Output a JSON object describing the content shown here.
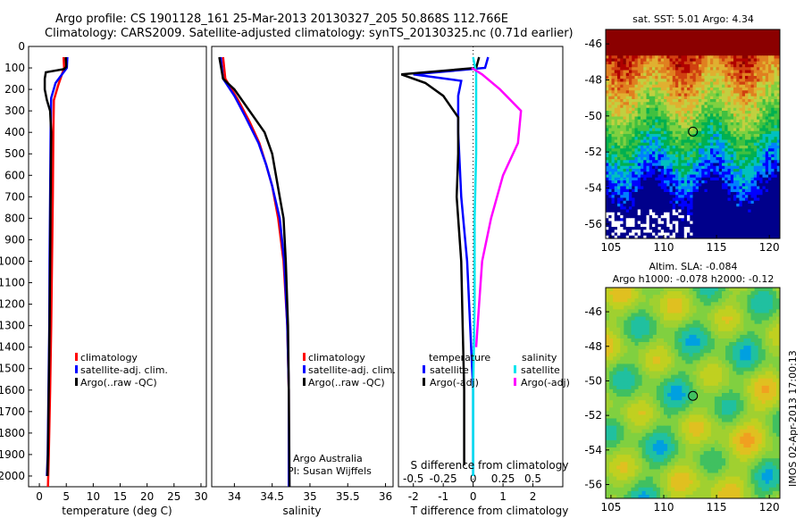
{
  "header": {
    "line1": "Argo profile: CS 1901128_161 25-Mar-2013 20130327_205 50.868S 112.766E",
    "line2": "Climatology: CARS2009. Satellite-adjusted climatology: synTS_20130325.nc (0.71d earlier)"
  },
  "colors": {
    "clim": "#ff0000",
    "sat": "#0000ff",
    "argo": "#000000",
    "sat_s": "#00e5ee",
    "argo_s": "#ff00ff"
  },
  "chart_data": [
    {
      "type": "line",
      "id": "temperature",
      "xlabel": "temperature (deg C)",
      "xlim": [
        -2,
        31
      ],
      "ylim": [
        2050,
        0
      ],
      "xticks": [
        0,
        5,
        10,
        15,
        20,
        25,
        30
      ],
      "yticks": [
        0,
        100,
        200,
        300,
        400,
        500,
        600,
        700,
        800,
        900,
        1000,
        1100,
        1200,
        1300,
        1400,
        1500,
        1600,
        1700,
        1800,
        1900,
        2000
      ],
      "legend": [
        "climatology",
        "satellite-adj. clim.",
        "Argo(..raw -QC)"
      ],
      "series": [
        {
          "name": "climatology",
          "color": "clim",
          "points": [
            [
              4.5,
              50
            ],
            [
              4.6,
              100
            ],
            [
              3.5,
              180
            ],
            [
              2.7,
              250
            ],
            [
              2.6,
              400
            ],
            [
              2.5,
              700
            ],
            [
              2.35,
              1000
            ],
            [
              2.2,
              1300
            ],
            [
              2.0,
              1600
            ],
            [
              1.75,
              1900
            ],
            [
              1.6,
              2050
            ]
          ]
        },
        {
          "name": "satellite-adj. clim.",
          "color": "sat",
          "points": [
            [
              5.2,
              50
            ],
            [
              5.1,
              100
            ],
            [
              3.0,
              170
            ],
            [
              2.2,
              240
            ],
            [
              2.1,
              400
            ],
            [
              2.0,
              700
            ],
            [
              1.9,
              1000
            ],
            [
              1.85,
              1300
            ],
            [
              1.7,
              1600
            ],
            [
              1.55,
              1900
            ],
            [
              1.4,
              2000
            ]
          ]
        },
        {
          "name": "Argo(..raw -QC)",
          "color": "argo",
          "points": [
            [
              4.9,
              50
            ],
            [
              5.0,
              95
            ],
            [
              4.6,
              105
            ],
            [
              1.2,
              120
            ],
            [
              1.0,
              150
            ],
            [
              1.0,
              200
            ],
            [
              1.4,
              250
            ],
            [
              2.0,
              300
            ],
            [
              2.2,
              400
            ],
            [
              2.1,
              700
            ],
            [
              2.0,
              1000
            ],
            [
              1.9,
              1300
            ],
            [
              1.75,
              1600
            ],
            [
              1.6,
              1900
            ],
            [
              1.5,
              2000
            ]
          ]
        }
      ]
    },
    {
      "type": "line",
      "id": "salinity",
      "xlabel": "salinity",
      "xlim": [
        33.7,
        36.1
      ],
      "ylim": [
        2050,
        0
      ],
      "xticks": [
        34,
        34.5,
        35,
        35.5,
        36
      ],
      "legend": [
        "climatology",
        "satellite-adj. clim.",
        "Argo(..raw -QC)"
      ],
      "credit": [
        "Argo Australia",
        "PI: Susan Wijffels"
      ],
      "series": [
        {
          "name": "climatology",
          "color": "clim",
          "points": [
            [
              33.85,
              50
            ],
            [
              33.88,
              150
            ],
            [
              34.05,
              250
            ],
            [
              34.2,
              350
            ],
            [
              34.33,
              450
            ],
            [
              34.42,
              550
            ],
            [
              34.5,
              650
            ],
            [
              34.58,
              800
            ],
            [
              34.65,
              1000
            ],
            [
              34.7,
              1300
            ],
            [
              34.72,
              1600
            ],
            [
              34.72,
              2050
            ]
          ]
        },
        {
          "name": "satellite-adj. clim.",
          "color": "sat",
          "points": [
            [
              33.82,
              50
            ],
            [
              33.85,
              150
            ],
            [
              34.0,
              230
            ],
            [
              34.15,
              330
            ],
            [
              34.32,
              450
            ],
            [
              34.42,
              550
            ],
            [
              34.5,
              650
            ],
            [
              34.6,
              800
            ],
            [
              34.66,
              1000
            ],
            [
              34.7,
              1300
            ],
            [
              34.72,
              1600
            ],
            [
              34.72,
              2050
            ]
          ]
        },
        {
          "name": "Argo(..raw -QC)",
          "color": "argo",
          "points": [
            [
              33.8,
              50
            ],
            [
              33.85,
              150
            ],
            [
              34.0,
              200
            ],
            [
              34.2,
              300
            ],
            [
              34.4,
              400
            ],
            [
              34.5,
              500
            ],
            [
              34.55,
              600
            ],
            [
              34.6,
              700
            ],
            [
              34.65,
              800
            ],
            [
              34.68,
              1000
            ],
            [
              34.71,
              1300
            ],
            [
              34.72,
              1600
            ],
            [
              34.73,
              2050
            ]
          ]
        }
      ]
    },
    {
      "type": "line",
      "id": "difference",
      "xlabel": "T difference from climatology",
      "toplabel": "S difference from climatology",
      "xlim": [
        -2.5,
        3.0
      ],
      "ylim": [
        2050,
        0
      ],
      "xticks": [
        -2,
        -1,
        0,
        1,
        2
      ],
      "xticks_top": [
        "-0.5",
        "-0.25",
        "0",
        "0.25",
        "0.5"
      ],
      "legend_headers": [
        "temperature",
        "salinity"
      ],
      "legend_left": [
        "satellite",
        "Argo(-adj)"
      ],
      "legend_right": [
        "satellite",
        "Argo(-adj)"
      ],
      "series": [
        {
          "name": "satellite",
          "color": "sat",
          "points": [
            [
              0.5,
              50
            ],
            [
              0.4,
              100
            ],
            [
              -2.0,
              130
            ],
            [
              -0.4,
              160
            ],
            [
              -0.5,
              230
            ],
            [
              -0.5,
              400
            ],
            [
              -0.4,
              700
            ],
            [
              -0.2,
              1000
            ],
            [
              -0.1,
              1300
            ],
            [
              0.0,
              1600
            ],
            [
              0.0,
              2000
            ]
          ]
        },
        {
          "name": "Argo(-adj)",
          "color": "argo",
          "points": [
            [
              0.2,
              50
            ],
            [
              0.1,
              100
            ],
            [
              -2.4,
              130
            ],
            [
              -1.6,
              170
            ],
            [
              -1.0,
              230
            ],
            [
              -0.5,
              330
            ],
            [
              -0.5,
              500
            ],
            [
              -0.55,
              700
            ],
            [
              -0.4,
              1000
            ],
            [
              -0.35,
              1300
            ],
            [
              -0.3,
              1600
            ],
            [
              -0.3,
              1950
            ]
          ]
        },
        {
          "name": "satellite",
          "color": "sat_s",
          "points": [
            [
              0.0,
              50
            ],
            [
              0.1,
              120
            ],
            [
              0.1,
              300
            ],
            [
              0.1,
              500
            ],
            [
              0.05,
              800
            ],
            [
              0.05,
              1200
            ],
            [
              0.0,
              1600
            ],
            [
              0.0,
              2000
            ]
          ]
        },
        {
          "name": "Argo(-adj)",
          "color": "argo_s",
          "points": [
            [
              -0.05,
              100
            ],
            [
              0.3,
              130
            ],
            [
              0.9,
              200
            ],
            [
              1.6,
              300
            ],
            [
              1.5,
              450
            ],
            [
              1.0,
              600
            ],
            [
              0.6,
              800
            ],
            [
              0.3,
              1000
            ],
            [
              0.2,
              1200
            ],
            [
              0.1,
              1400
            ]
          ]
        }
      ]
    },
    {
      "type": "heatmap",
      "id": "sst",
      "title": "sat. SST: 5.01 Argo: 4.34",
      "xticks": [
        105,
        110,
        115,
        120
      ],
      "yticks": [
        -46,
        -48,
        -50,
        -52,
        -54,
        -56
      ],
      "xlim": [
        104.5,
        121
      ],
      "ylim": [
        -56.8,
        -45.2
      ],
      "marker": [
        112.766,
        -50.868
      ]
    },
    {
      "type": "heatmap",
      "id": "sla",
      "title_lines": [
        "Altim. SLA: -0.084",
        "Argo h1000: -0.078 h2000: -0.12"
      ],
      "xticks": [
        105,
        110,
        115,
        120
      ],
      "yticks": [
        -46,
        -48,
        -50,
        -52,
        -54,
        -56
      ],
      "xlim": [
        104.5,
        121
      ],
      "ylim": [
        -56.8,
        -44.6
      ],
      "marker": [
        112.766,
        -50.868
      ]
    }
  ],
  "side_note": "IMOS 02-Apr-2013 17:00:13"
}
